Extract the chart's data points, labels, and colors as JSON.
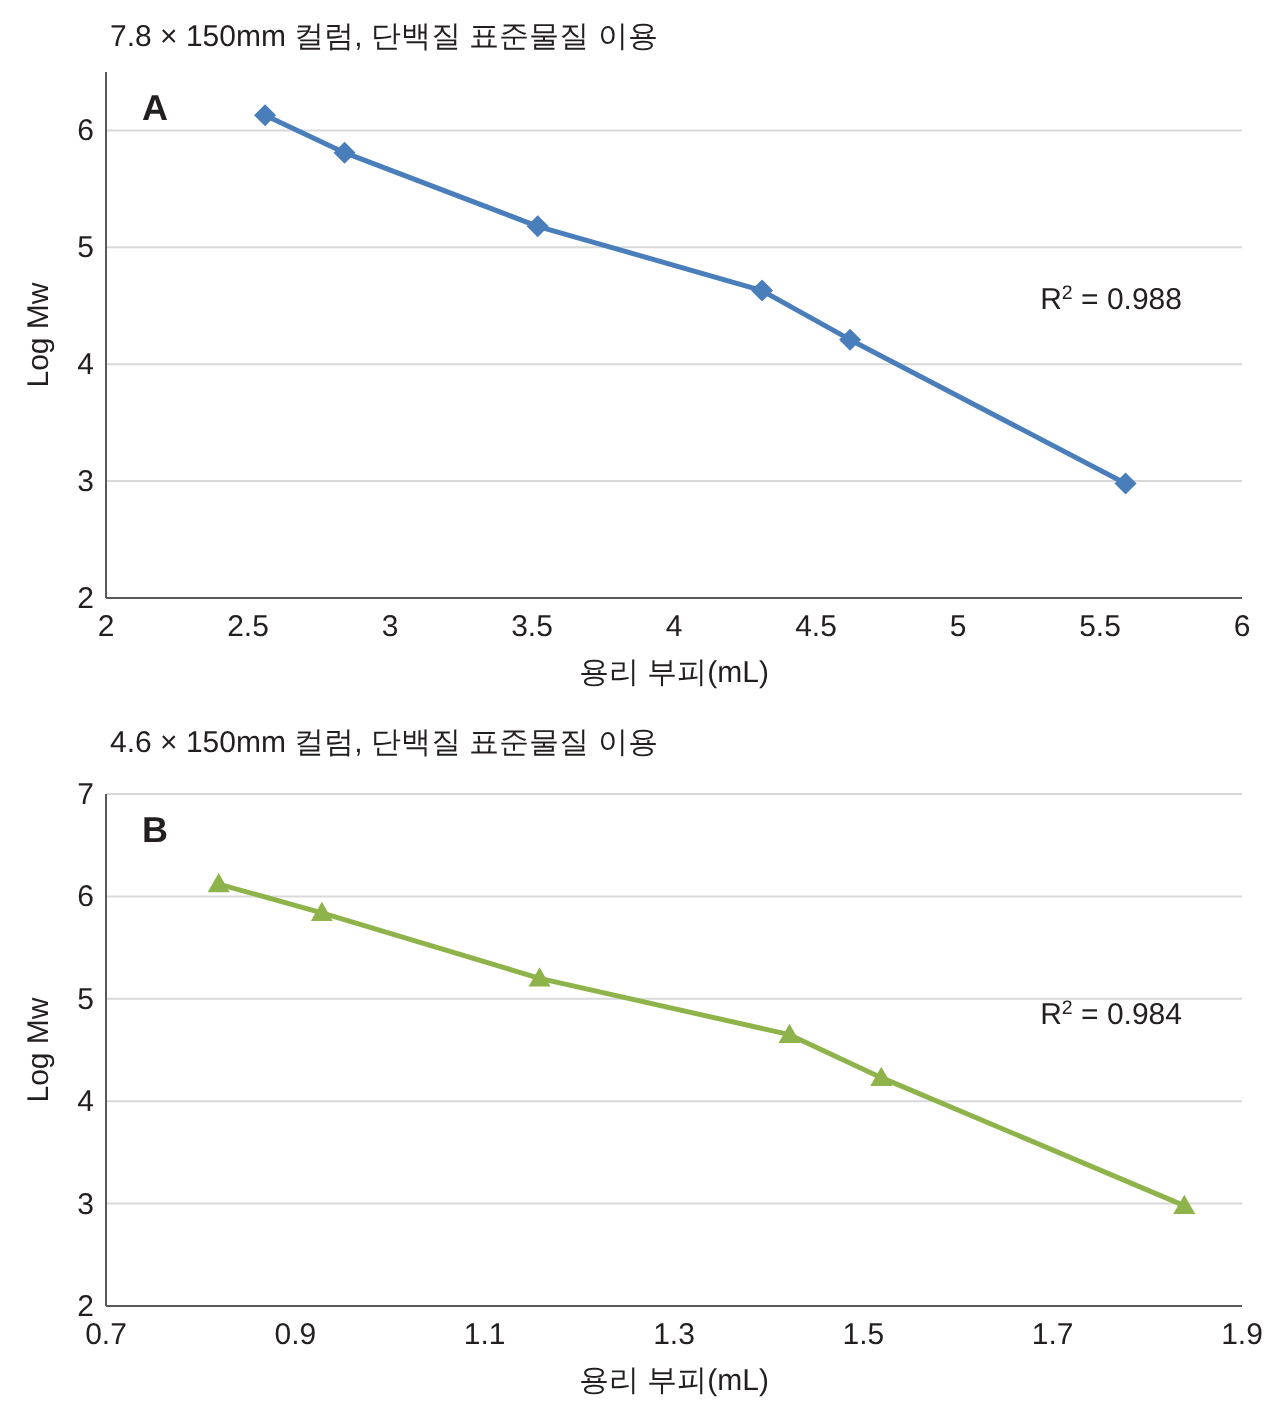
{
  "chart_data": [
    {
      "type": "line",
      "title": "7.8 × 150mm 컬럼, 단백질 표준물질 이용",
      "xlabel": "용리 부피(mL)",
      "ylabel": "Log Mw",
      "xlim": [
        2,
        6
      ],
      "xticks": [
        2,
        2.5,
        3,
        3.5,
        4,
        4.5,
        5,
        5.5,
        6
      ],
      "ylim": [
        2,
        6.5
      ],
      "yticks": [
        2,
        3,
        4,
        5,
        6
      ],
      "grid": "y",
      "marker": "diamond",
      "line_style": "solid",
      "annotations": [
        "A",
        "R$^{2}$ = 0.988"
      ],
      "series": [
        {
          "color": "#4a7ebb",
          "x": [
            2.56,
            2.84,
            3.52,
            4.31,
            4.62,
            5.59
          ],
          "values": [
            6.13,
            5.81,
            5.18,
            4.63,
            4.21,
            2.98
          ]
        }
      ]
    },
    {
      "type": "line",
      "title": "4.6 × 150mm 컬럼, 단백질 표준물질 이용",
      "xlabel": "용리 부피(mL)",
      "ylabel": "Log Mw",
      "xlim": [
        0.7,
        1.9
      ],
      "xticks": [
        0.7,
        0.9,
        1.1,
        1.3,
        1.5,
        1.7,
        1.9
      ],
      "ylim": [
        2,
        7
      ],
      "yticks": [
        2,
        3,
        4,
        5,
        6,
        7
      ],
      "grid": "y",
      "marker": "triangle",
      "line_style": "solid",
      "annotations": [
        "B",
        "R$^{2}$ = 0.984"
      ],
      "series": [
        {
          "color": "#8db34a",
          "x": [
            0.819,
            0.928,
            1.158,
            1.422,
            1.519,
            1.839
          ],
          "values": [
            6.12,
            5.84,
            5.2,
            4.65,
            4.23,
            2.98
          ]
        }
      ]
    }
  ]
}
